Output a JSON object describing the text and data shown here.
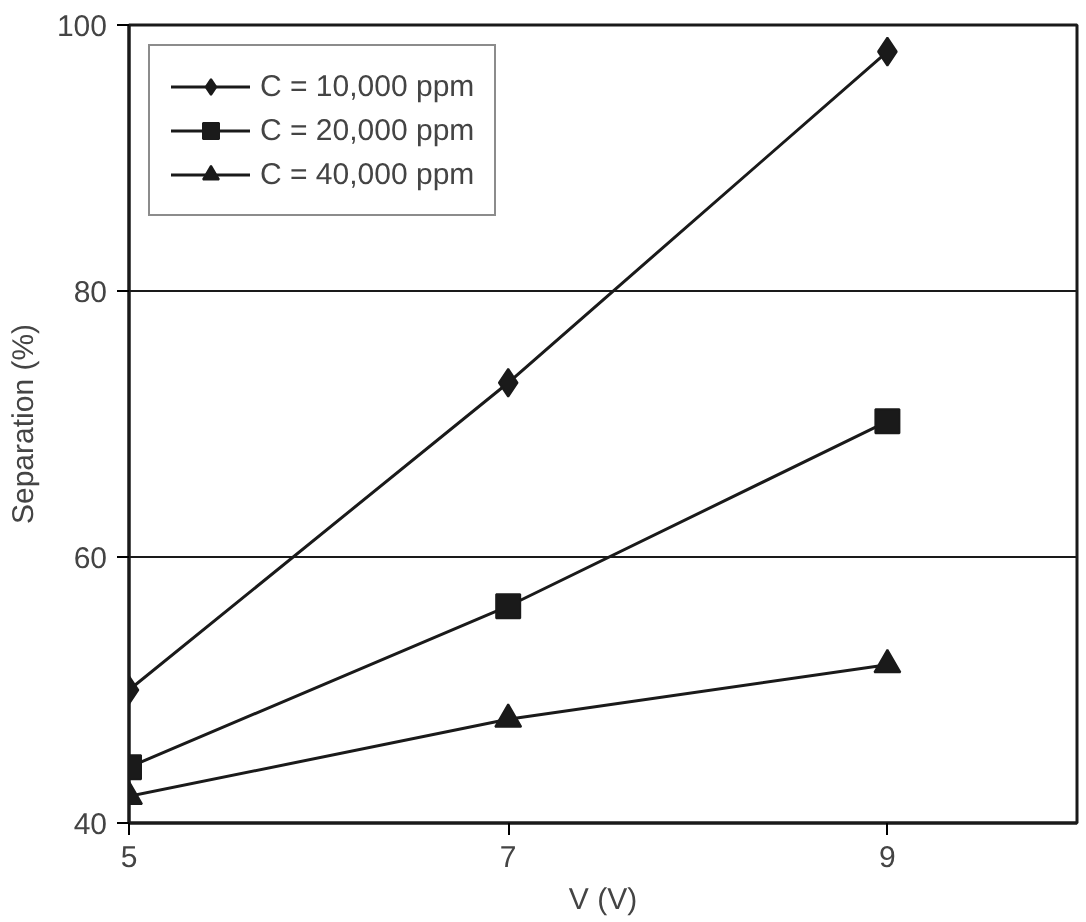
{
  "chart_data": {
    "type": "line",
    "xlabel": "V (V)",
    "ylabel": "Separation (%)",
    "x": [
      5,
      7,
      9
    ],
    "series": [
      {
        "name": "C = 10,000 ppm",
        "color": "#1a1a1a",
        "marker": "diamond",
        "values": [
          50,
          73.1,
          98
        ]
      },
      {
        "name": "C = 20,000 ppm",
        "color": "#1a1a1a",
        "marker": "square",
        "values": [
          44.2,
          56.3,
          70.2
        ]
      },
      {
        "name": "C = 40,000 ppm",
        "color": "#1a1a1a",
        "marker": "triangle",
        "values": [
          42,
          47.8,
          51.9
        ]
      }
    ],
    "xlim": [
      5,
      10
    ],
    "ylim": [
      40,
      100
    ],
    "xticks": [
      5,
      7,
      9
    ],
    "yticks": [
      40,
      60,
      80,
      100
    ],
    "grid": "y",
    "legend": "top left",
    "line_style": "solid"
  }
}
